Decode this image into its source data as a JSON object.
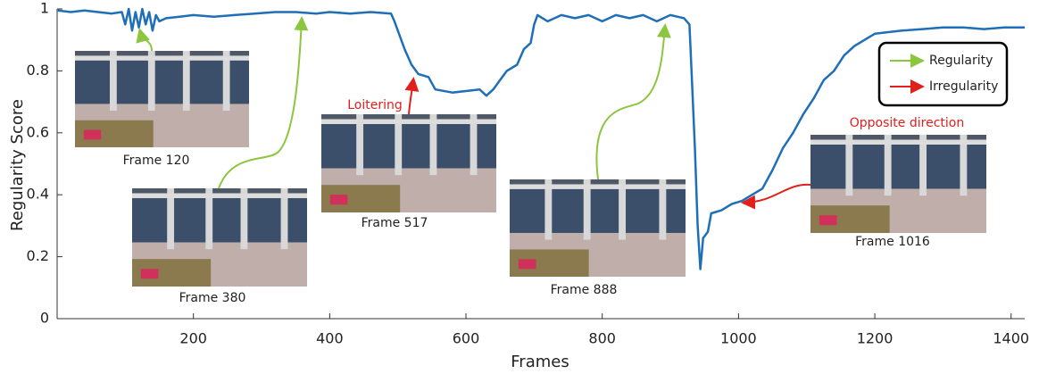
{
  "chart_data": {
    "type": "line",
    "xlabel": "Frames",
    "ylabel": "Regularity Score",
    "xlim": [
      0,
      1420
    ],
    "ylim": [
      0,
      1
    ],
    "xticks": [
      200,
      400,
      600,
      800,
      1000,
      1200,
      1400
    ],
    "yticks": [
      0,
      0.2,
      0.4,
      0.6,
      0.8,
      1
    ],
    "grid": false,
    "x": [
      1,
      20,
      40,
      60,
      80,
      95,
      100,
      105,
      110,
      115,
      120,
      125,
      130,
      135,
      140,
      145,
      150,
      160,
      180,
      200,
      230,
      260,
      290,
      320,
      350,
      380,
      400,
      430,
      460,
      490,
      495,
      500,
      505,
      510,
      520,
      530,
      545,
      555,
      580,
      600,
      620,
      630,
      640,
      650,
      660,
      675,
      685,
      695,
      700,
      705,
      720,
      740,
      760,
      780,
      800,
      820,
      840,
      860,
      880,
      900,
      920,
      928,
      932,
      936,
      940,
      944,
      948,
      955,
      960,
      975,
      990,
      1005,
      1020,
      1035,
      1050,
      1065,
      1080,
      1095,
      1110,
      1125,
      1140,
      1155,
      1170,
      1185,
      1200,
      1220,
      1240,
      1270,
      1300,
      1330,
      1360,
      1390,
      1420
    ],
    "series": [
      {
        "color": "#1f6fb8",
        "values": [
          0.995,
          0.99,
          0.995,
          0.99,
          0.985,
          0.99,
          0.95,
          1.0,
          0.93,
          0.99,
          0.94,
          1.0,
          0.95,
          0.99,
          0.93,
          0.98,
          0.96,
          0.97,
          0.975,
          0.98,
          0.975,
          0.98,
          0.985,
          0.99,
          0.99,
          0.985,
          0.99,
          0.985,
          0.99,
          0.985,
          0.96,
          0.93,
          0.9,
          0.87,
          0.82,
          0.79,
          0.78,
          0.74,
          0.73,
          0.735,
          0.74,
          0.72,
          0.74,
          0.77,
          0.8,
          0.82,
          0.87,
          0.89,
          0.95,
          0.98,
          0.96,
          0.98,
          0.97,
          0.98,
          0.96,
          0.98,
          0.97,
          0.98,
          0.96,
          0.98,
          0.97,
          0.95,
          0.75,
          0.55,
          0.3,
          0.16,
          0.26,
          0.28,
          0.34,
          0.35,
          0.37,
          0.38,
          0.4,
          0.42,
          0.48,
          0.55,
          0.6,
          0.66,
          0.71,
          0.77,
          0.8,
          0.85,
          0.88,
          0.9,
          0.92,
          0.925,
          0.93,
          0.935,
          0.94,
          0.94,
          0.935,
          0.94,
          0.94
        ]
      }
    ],
    "legend": [
      {
        "label": "Regularity",
        "color": "#8cc63f"
      },
      {
        "label": "Irregularity",
        "color": "#e0201b"
      }
    ],
    "annotations": [
      {
        "text": "Frame 120"
      },
      {
        "text": "Frame 380"
      },
      {
        "text": "Frame 517",
        "note": "Loitering"
      },
      {
        "text": "Frame 888"
      },
      {
        "text": "Frame 1016",
        "note": "Opposite direction"
      }
    ]
  }
}
